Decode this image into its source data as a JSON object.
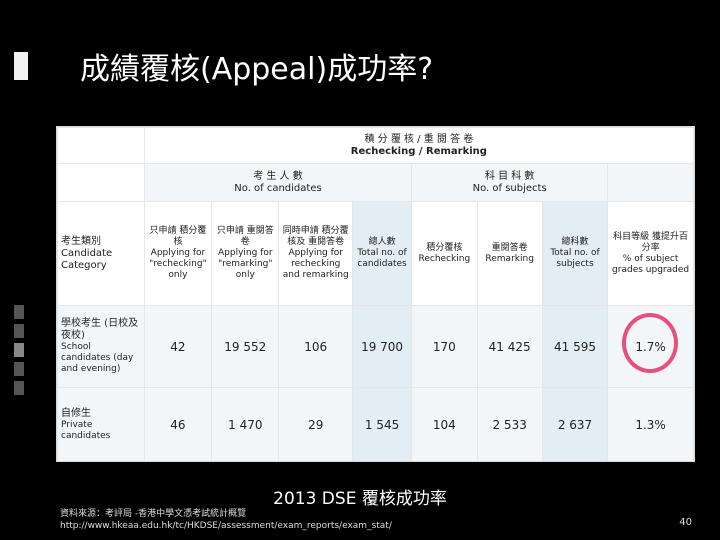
{
  "title": "成績覆核(Appeal)成功率?",
  "table": {
    "header_top": "積 分 覆 核  /  重 閱 答 卷",
    "header_top_en": "Rechecking / Remarking",
    "group1": "考 生 人 數",
    "group1_en": "No. of candidates",
    "group2": "科 目 科 數",
    "group2_en": "No. of subjects",
    "col0": "考生類別",
    "col0_en": "Candidate Category",
    "col1": "只申請 積分覆核",
    "col1_en": "Applying for \"rechecking\" only",
    "col2": "只申請 重閱答卷",
    "col2_en": "Applying for \"remarking\" only",
    "col3": "同時申請 積分覆核及 重閱答卷",
    "col3_en": "Applying for rechecking and remarking",
    "col4": "總人數",
    "col4_en": "Total no. of candidates",
    "col5": "積分覆核",
    "col5_en": "Rechecking",
    "col6": "重閱答卷",
    "col6_en": "Remarking",
    "col7": "總科數",
    "col7_en": "Total no. of subjects",
    "col8": "科目等級 獲提升百分率",
    "col8_en": "% of subject grades upgraded",
    "rows": [
      {
        "label": "學校考生 (日校及夜校)",
        "label_en": "School candidates (day and evening)",
        "values": [
          "42",
          "19 552",
          "106",
          "19 700",
          "170",
          "41 425",
          "41 595",
          "1.7%"
        ]
      },
      {
        "label": "自修生",
        "label_en": "Private candidates",
        "values": [
          "46",
          "1 470",
          "29",
          "1 545",
          "104",
          "2 533",
          "2 637",
          "1.3%"
        ]
      }
    ]
  },
  "caption": "2013 DSE 覆核成功率",
  "source_line1": "資料來源：考評局 -香港中學文憑考試統計概覽",
  "source_line2": "http://www.hkeaa.edu.hk/tc/HKDSE/assessment/exam_reports/exam_stat/",
  "page_number": "40",
  "colors": {
    "highlight_circle": "#e8507c",
    "slide_bg": "#000000"
  }
}
